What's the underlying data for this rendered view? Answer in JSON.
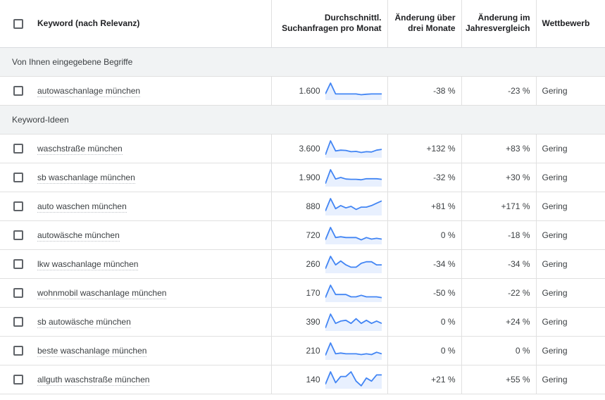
{
  "header": {
    "keyword": "Keyword (nach Relevanz)",
    "avg_line1": "Durchschnittl.",
    "avg_line2": "Suchanfragen pro Monat",
    "three_month_line1": "Änderung über",
    "three_month_line2": "drei Monate",
    "yoy_line1": "Änderung im",
    "yoy_line2": "Jahresvergleich",
    "competition": "Wettbewerb"
  },
  "colors": {
    "sparkline_line": "#4285f4",
    "sparkline_fill": "#e8f0fe"
  },
  "sections": [
    {
      "title": "Von Ihnen eingegebene Begriffe",
      "rows": [
        {
          "keyword": "autowaschanlage münchen",
          "avg": "1.600",
          "three_month": "-38 %",
          "yoy": "-23 %",
          "competition": "Gering",
          "trend": [
            30,
            100,
            30,
            30,
            30,
            30,
            30,
            25,
            28,
            30,
            30,
            30
          ]
        }
      ]
    },
    {
      "title": "Keyword-Ideen",
      "rows": [
        {
          "keyword": "waschstraße münchen",
          "avg": "3.600",
          "three_month": "+132 %",
          "yoy": "+83 %",
          "competition": "Gering",
          "trend": [
            10,
            100,
            35,
            40,
            38,
            30,
            32,
            25,
            30,
            28,
            40,
            45
          ]
        },
        {
          "keyword": "sb waschanlage münchen",
          "avg": "1.900",
          "three_month": "-32 %",
          "yoy": "+30 %",
          "competition": "Gering",
          "trend": [
            10,
            100,
            40,
            50,
            40,
            38,
            38,
            35,
            42,
            42,
            42,
            38
          ]
        },
        {
          "keyword": "auto waschen münchen",
          "avg": "880",
          "three_month": "+81 %",
          "yoy": "+171 %",
          "competition": "Gering",
          "trend": [
            20,
            100,
            35,
            55,
            40,
            50,
            30,
            45,
            45,
            55,
            70,
            85
          ]
        },
        {
          "keyword": "autowäsche münchen",
          "avg": "720",
          "three_month": "0 %",
          "yoy": "-18 %",
          "competition": "Gering",
          "trend": [
            20,
            100,
            35,
            40,
            35,
            35,
            35,
            20,
            35,
            25,
            30,
            25
          ]
        },
        {
          "keyword": "lkw waschanlage münchen",
          "avg": "260",
          "three_month": "-34 %",
          "yoy": "-34 %",
          "competition": "Gering",
          "trend": [
            20,
            100,
            45,
            70,
            45,
            30,
            30,
            55,
            65,
            65,
            45,
            45
          ]
        },
        {
          "keyword": "wohnmobil waschanlage münchen",
          "avg": "170",
          "three_month": "-50 %",
          "yoy": "-22 %",
          "competition": "Gering",
          "trend": [
            20,
            100,
            40,
            40,
            40,
            25,
            25,
            35,
            25,
            25,
            25,
            20
          ]
        },
        {
          "keyword": "sb autowäsche münchen",
          "avg": "390",
          "three_month": "0 %",
          "yoy": "+24 %",
          "competition": "Gering",
          "trend": [
            10,
            100,
            40,
            55,
            60,
            40,
            70,
            40,
            60,
            40,
            55,
            40
          ]
        },
        {
          "keyword": "beste waschanlage münchen",
          "avg": "210",
          "three_month": "0 %",
          "yoy": "0 %",
          "competition": "Gering",
          "trend": [
            20,
            100,
            30,
            35,
            30,
            30,
            30,
            25,
            30,
            25,
            40,
            30
          ]
        },
        {
          "keyword": "allguth waschstraße münchen",
          "avg": "140",
          "three_month": "+21 %",
          "yoy": "+55 %",
          "competition": "Gering",
          "trend": [
            20,
            100,
            30,
            70,
            70,
            100,
            40,
            10,
            60,
            40,
            80,
            80
          ]
        }
      ]
    }
  ]
}
